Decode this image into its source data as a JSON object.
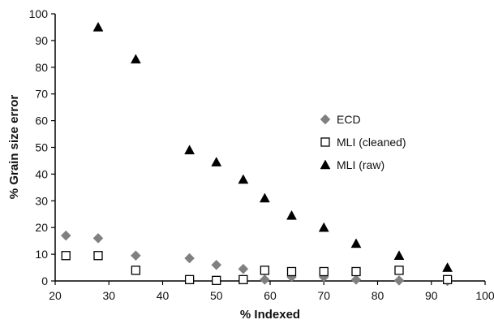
{
  "chart_data": {
    "type": "scatter",
    "title": "",
    "xlabel": "% Indexed",
    "ylabel": "% Grain size error",
    "xlim": [
      20,
      100
    ],
    "ylim": [
      0,
      100
    ],
    "xticks": [
      20,
      30,
      40,
      50,
      60,
      70,
      80,
      90,
      100
    ],
    "yticks": [
      0,
      10,
      20,
      30,
      40,
      50,
      60,
      70,
      80,
      90,
      100
    ],
    "grid": false,
    "legend_position": "right",
    "series": [
      {
        "name": "ECD",
        "marker": "diamond",
        "color": "#808080",
        "points": [
          [
            22,
            17
          ],
          [
            28,
            16
          ],
          [
            35,
            9.5
          ],
          [
            45,
            8.5
          ],
          [
            50,
            6
          ],
          [
            55,
            4.5
          ],
          [
            59,
            0.5
          ],
          [
            64,
            1.5
          ],
          [
            70,
            1.5
          ],
          [
            76,
            0.5
          ],
          [
            84,
            0.2
          ],
          [
            93,
            0
          ]
        ]
      },
      {
        "name": "MLI (cleaned)",
        "marker": "square-open",
        "color": "#000000",
        "points": [
          [
            22,
            9.5
          ],
          [
            28,
            9.5
          ],
          [
            35,
            4
          ],
          [
            45,
            0.5
          ],
          [
            50,
            0.2
          ],
          [
            55,
            0.5
          ],
          [
            59,
            4
          ],
          [
            64,
            3.5
          ],
          [
            70,
            3.5
          ],
          [
            76,
            3.5
          ],
          [
            84,
            4
          ],
          [
            93,
            0.5
          ]
        ]
      },
      {
        "name": "MLI (raw)",
        "marker": "triangle",
        "color": "#000000",
        "points": [
          [
            28,
            95
          ],
          [
            35,
            83
          ],
          [
            45,
            49
          ],
          [
            50,
            44.5
          ],
          [
            55,
            38
          ],
          [
            59,
            31
          ],
          [
            64,
            24.5
          ],
          [
            70,
            20
          ],
          [
            76,
            14
          ],
          [
            84,
            9.5
          ],
          [
            93,
            5
          ]
        ]
      }
    ]
  }
}
